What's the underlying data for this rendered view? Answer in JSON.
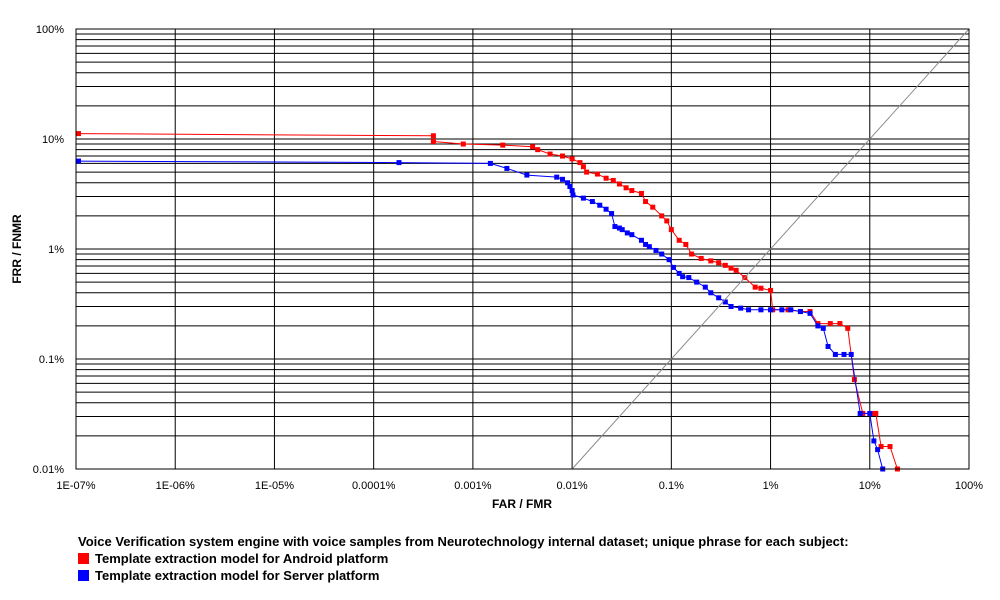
{
  "chart_data": {
    "type": "line",
    "xlabel": "FAR / FMR",
    "ylabel": "FRR / FNMR",
    "x_scale": "log",
    "y_scale": "log",
    "xlim": [
      1e-09,
      1
    ],
    "ylim": [
      0.0001,
      1
    ],
    "x_ticks": [
      "1E-07%",
      "1E-06%",
      "1E-05%",
      "0.0001%",
      "0.001%",
      "0.01%",
      "0.1%",
      "1%",
      "10%",
      "100%"
    ],
    "y_ticks": [
      "0.01%",
      "0.1%",
      "1%",
      "10%",
      "100%"
    ],
    "grid": true,
    "legend_position": "bottom-left",
    "caption": "Voice Verification system engine with voice samples from Neurotechnology internal dataset; unique phrase for each subject:",
    "series": [
      {
        "name": "Template extraction model for Android platform",
        "color": "#ff0000",
        "points": [
          [
            1e-09,
            0.112
          ],
          [
            4e-06,
            0.107
          ],
          [
            4e-06,
            0.095
          ],
          [
            8e-06,
            0.09
          ],
          [
            2e-05,
            0.088
          ],
          [
            4e-05,
            0.085
          ],
          [
            4.5e-05,
            0.08
          ],
          [
            6e-05,
            0.073
          ],
          [
            8e-05,
            0.07
          ],
          [
            0.0001,
            0.066
          ],
          [
            0.00012,
            0.061
          ],
          [
            0.00013,
            0.056
          ],
          [
            0.00014,
            0.05
          ],
          [
            0.00018,
            0.048
          ],
          [
            0.00022,
            0.044
          ],
          [
            0.00026,
            0.042
          ],
          [
            0.0003,
            0.039
          ],
          [
            0.00035,
            0.036
          ],
          [
            0.0004,
            0.034
          ],
          [
            0.0005,
            0.032
          ],
          [
            0.00055,
            0.027
          ],
          [
            0.00065,
            0.024
          ],
          [
            0.0008,
            0.02
          ],
          [
            0.0009,
            0.018
          ],
          [
            0.001,
            0.015
          ],
          [
            0.0012,
            0.012
          ],
          [
            0.0014,
            0.011
          ],
          [
            0.0016,
            0.009
          ],
          [
            0.002,
            0.0082
          ],
          [
            0.0025,
            0.0078
          ],
          [
            0.003,
            0.0075
          ],
          [
            0.0035,
            0.0071
          ],
          [
            0.004,
            0.0067
          ],
          [
            0.0045,
            0.0064
          ],
          [
            0.0055,
            0.0055
          ],
          [
            0.007,
            0.0045
          ],
          [
            0.008,
            0.0044
          ],
          [
            0.01,
            0.0042
          ],
          [
            0.0105,
            0.0028
          ],
          [
            0.015,
            0.0028
          ],
          [
            0.02,
            0.0027
          ],
          [
            0.025,
            0.0027
          ],
          [
            0.03,
            0.0021
          ],
          [
            0.04,
            0.0021
          ],
          [
            0.05,
            0.0021
          ],
          [
            0.06,
            0.0019
          ],
          [
            0.07,
            0.00065
          ],
          [
            0.085,
            0.00032
          ],
          [
            0.11,
            0.00032
          ],
          [
            0.115,
            0.00032
          ],
          [
            0.13,
            0.00016
          ],
          [
            0.16,
            0.00016
          ],
          [
            0.19,
            0.0001
          ]
        ]
      },
      {
        "name": "Template extraction model for Server platform",
        "color": "#0000ff",
        "points": [
          [
            1e-09,
            0.063
          ],
          [
            1.8e-06,
            0.061
          ],
          [
            1.5e-05,
            0.06
          ],
          [
            2.2e-05,
            0.054
          ],
          [
            3.5e-05,
            0.047
          ],
          [
            7e-05,
            0.045
          ],
          [
            8e-05,
            0.043
          ],
          [
            9e-05,
            0.04
          ],
          [
            9.5e-05,
            0.037
          ],
          [
            0.0001,
            0.034
          ],
          [
            0.000102,
            0.031
          ],
          [
            0.00013,
            0.029
          ],
          [
            0.00016,
            0.027
          ],
          [
            0.00019,
            0.025
          ],
          [
            0.00022,
            0.023
          ],
          [
            0.00025,
            0.021
          ],
          [
            0.00027,
            0.016
          ],
          [
            0.0003,
            0.0155
          ],
          [
            0.00032,
            0.015
          ],
          [
            0.00036,
            0.014
          ],
          [
            0.0004,
            0.0135
          ],
          [
            0.0005,
            0.012
          ],
          [
            0.00055,
            0.011
          ],
          [
            0.0006,
            0.0105
          ],
          [
            0.0007,
            0.0097
          ],
          [
            0.0008,
            0.009
          ],
          [
            0.00095,
            0.008
          ],
          [
            0.00105,
            0.0068
          ],
          [
            0.0012,
            0.006
          ],
          [
            0.0013,
            0.0056
          ],
          [
            0.0015,
            0.0055
          ],
          [
            0.0018,
            0.005
          ],
          [
            0.0022,
            0.0045
          ],
          [
            0.0025,
            0.004
          ],
          [
            0.003,
            0.0036
          ],
          [
            0.0035,
            0.0033
          ],
          [
            0.004,
            0.003
          ],
          [
            0.005,
            0.0029
          ],
          [
            0.006,
            0.0028
          ],
          [
            0.008,
            0.0028
          ],
          [
            0.01,
            0.0028
          ],
          [
            0.013,
            0.0028
          ],
          [
            0.016,
            0.0028
          ],
          [
            0.02,
            0.0027
          ],
          [
            0.025,
            0.0026
          ],
          [
            0.03,
            0.002
          ],
          [
            0.034,
            0.0019
          ],
          [
            0.038,
            0.0013
          ],
          [
            0.045,
            0.0011
          ],
          [
            0.055,
            0.0011
          ],
          [
            0.065,
            0.0011
          ],
          [
            0.08,
            0.00032
          ],
          [
            0.1,
            0.00032
          ],
          [
            0.11,
            0.00018
          ],
          [
            0.12,
            0.00015
          ],
          [
            0.135,
            0.0001
          ]
        ]
      },
      {
        "name": "",
        "color": "#8c8c8c",
        "style": "diagonal",
        "points": [
          [
            0.0001,
            0.0001
          ],
          [
            1,
            1
          ]
        ]
      }
    ]
  }
}
